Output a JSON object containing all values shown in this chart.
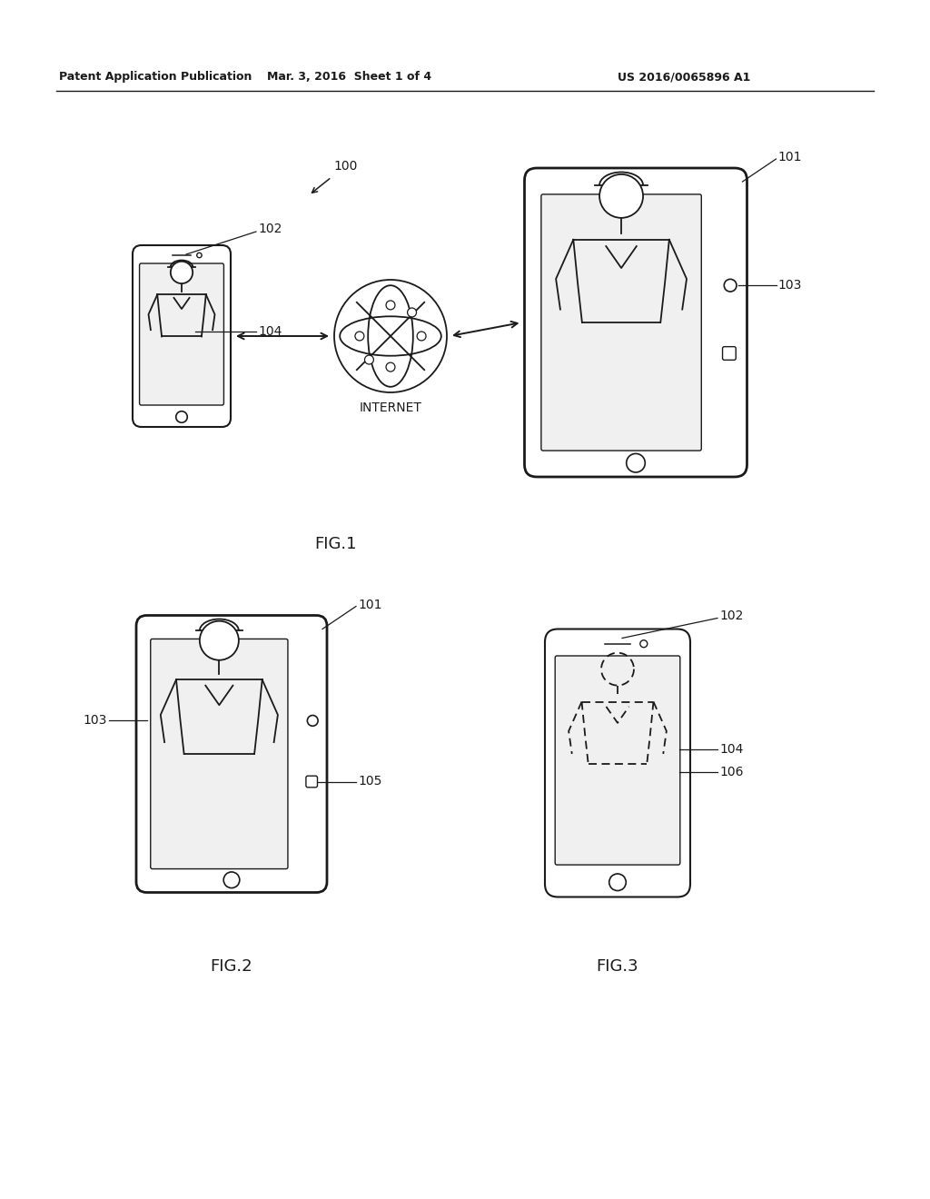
{
  "bg_color": "#ffffff",
  "line_color": "#1a1a1a",
  "header_left": "Patent Application Publication",
  "header_mid": "Mar. 3, 2016  Sheet 1 of 4",
  "header_right": "US 2016/0065896 A1",
  "fig1_label": "FIG.1",
  "fig2_label": "FIG.2",
  "fig3_label": "FIG.3",
  "ref_100": "100",
  "ref_101": "101",
  "ref_102": "102",
  "ref_103": "103",
  "ref_104": "104",
  "ref_105": "105",
  "ref_106": "106",
  "internet_label": "INTERNET"
}
